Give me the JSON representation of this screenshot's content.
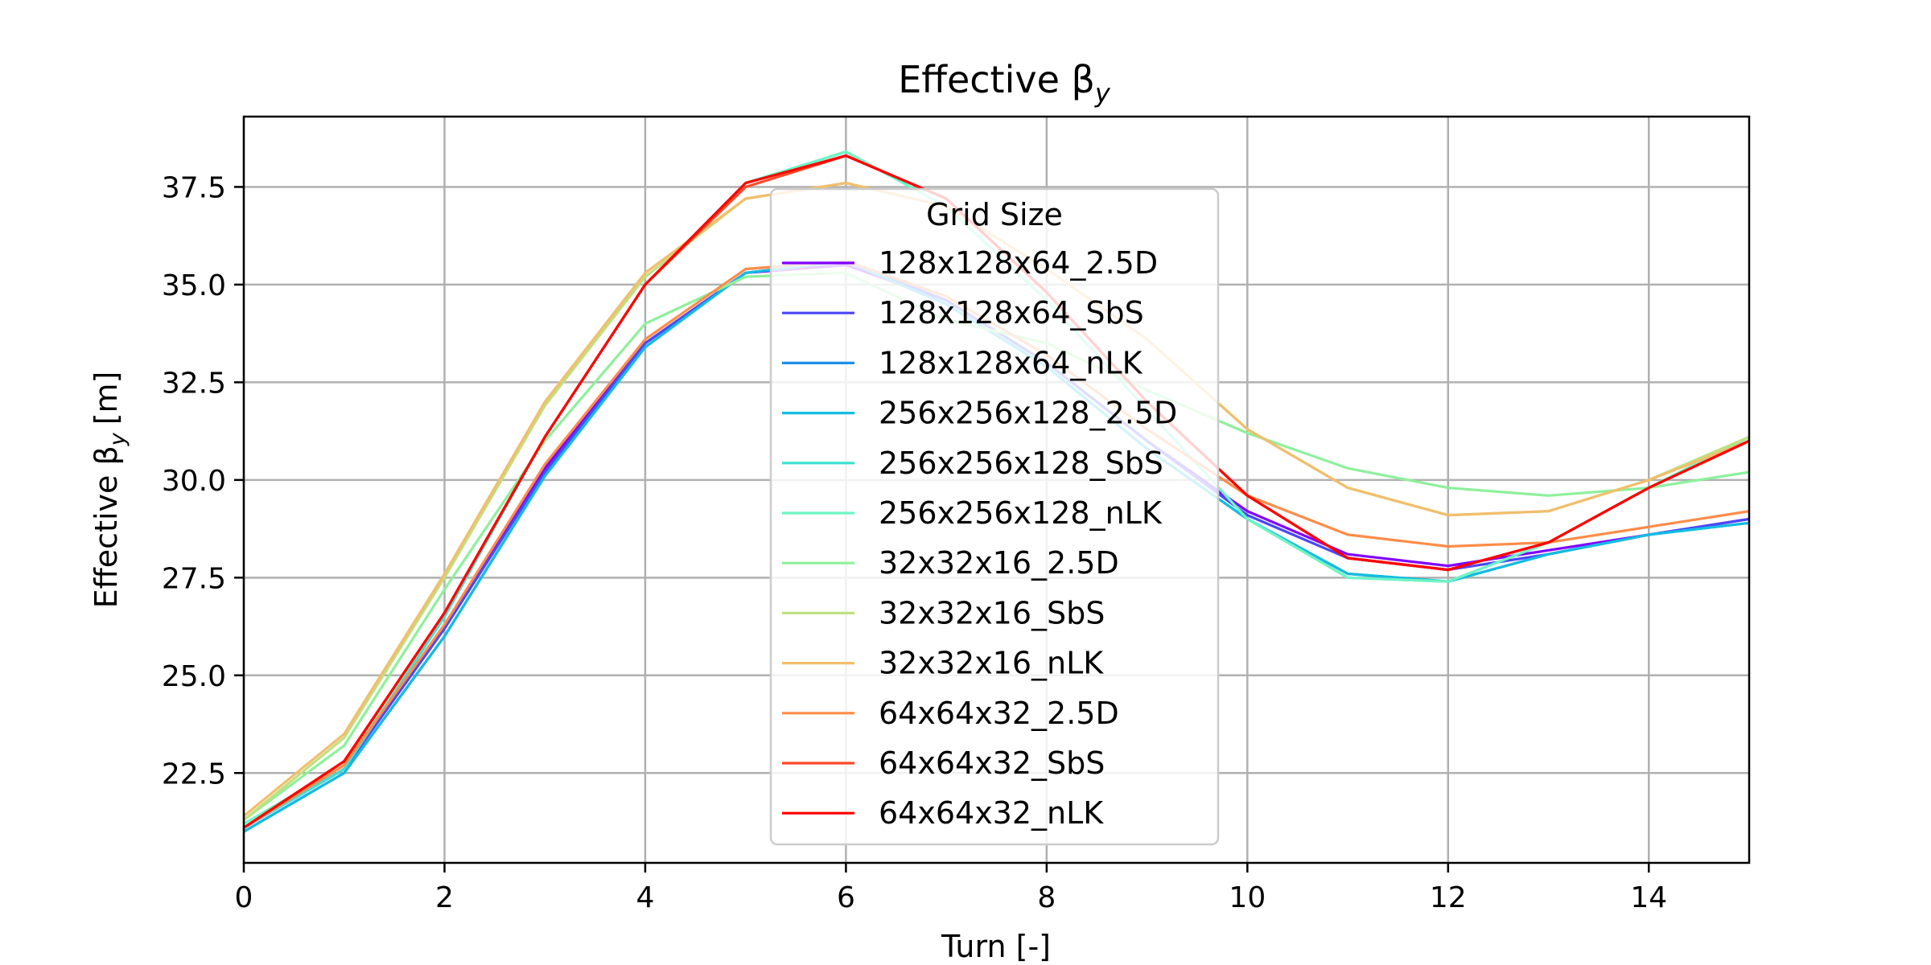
{
  "chart_data": {
    "type": "line",
    "title": "Effective β",
    "title_sub": "y",
    "xlabel": "Turn [-]",
    "ylabel": "Effective β",
    "ylabel_sub": "y",
    "ylabel_unit": "[m]",
    "xlim": [
      0,
      15
    ],
    "ylim": [
      20.2,
      39.3
    ],
    "xticks": [
      0,
      2,
      4,
      6,
      8,
      10,
      12,
      14
    ],
    "yticks": [
      22.5,
      25.0,
      27.5,
      30.0,
      32.5,
      35.0,
      37.5
    ],
    "ytick_labels": [
      "22.5",
      "25.0",
      "27.5",
      "30.0",
      "32.5",
      "35.0",
      "37.5"
    ],
    "grid": true,
    "legend": {
      "title": "Grid Size",
      "placement": "upper-center"
    },
    "x": [
      0,
      1,
      2,
      3,
      4,
      5,
      6,
      7,
      8,
      9,
      10,
      11,
      12,
      13,
      14,
      15
    ],
    "series": [
      {
        "name": "128x128x64_2.5D",
        "color": "#8000ff",
        "values": [
          21.1,
          22.6,
          26.2,
          30.3,
          33.5,
          35.3,
          35.5,
          34.6,
          33.0,
          31.0,
          29.2,
          28.1,
          27.8,
          28.2,
          28.6,
          29.0
        ]
      },
      {
        "name": "128x128x64_SbS",
        "color": "#4a48f8",
        "values": [
          21.1,
          22.6,
          26.2,
          30.2,
          33.5,
          35.3,
          35.6,
          34.6,
          33.0,
          31.0,
          29.1,
          28.0,
          27.7,
          28.1,
          28.6,
          29.0
        ]
      },
      {
        "name": "128x128x64_nLK",
        "color": "#1e8fe8",
        "values": [
          21.0,
          22.5,
          26.0,
          30.1,
          33.4,
          35.3,
          35.6,
          34.5,
          32.9,
          30.8,
          29.0,
          27.6,
          27.4,
          28.1,
          28.6,
          28.9
        ]
      },
      {
        "name": "256x256x128_2.5D",
        "color": "#14bce0",
        "values": [
          21.0,
          22.5,
          26.0,
          30.1,
          33.4,
          35.3,
          35.6,
          34.5,
          32.9,
          30.8,
          29.0,
          27.6,
          27.4,
          28.1,
          28.6,
          28.9
        ]
      },
      {
        "name": "256x256x128_SbS",
        "color": "#3ce0d0",
        "values": [
          21.1,
          22.6,
          26.5,
          31.1,
          35.0,
          37.6,
          38.4,
          37.0,
          34.6,
          31.8,
          29.0,
          27.5,
          27.4,
          28.4,
          29.8,
          31.1
        ]
      },
      {
        "name": "256x256x128_nLK",
        "color": "#6ef5c4",
        "values": [
          21.2,
          22.7,
          26.6,
          31.1,
          35.0,
          37.6,
          38.4,
          37.0,
          34.6,
          31.8,
          29.0,
          27.5,
          27.4,
          28.4,
          29.8,
          31.1
        ]
      },
      {
        "name": "32x32x16_2.5D",
        "color": "#8ef09c",
        "values": [
          21.3,
          23.2,
          27.2,
          31.0,
          34.0,
          35.2,
          35.3,
          34.1,
          33.5,
          32.3,
          31.2,
          30.3,
          29.8,
          29.6,
          29.8,
          30.2
        ]
      },
      {
        "name": "32x32x16_SbS",
        "color": "#c0e080",
        "values": [
          21.3,
          23.4,
          27.5,
          31.9,
          35.2,
          37.2,
          37.6,
          37.0,
          35.4,
          33.6,
          31.3,
          29.8,
          29.1,
          29.2,
          30.0,
          31.1
        ]
      },
      {
        "name": "32x32x16_nLK",
        "color": "#f2be6c",
        "values": [
          21.4,
          23.5,
          27.6,
          32.0,
          35.3,
          37.2,
          37.6,
          37.0,
          35.4,
          33.6,
          31.3,
          29.8,
          29.1,
          29.2,
          30.0,
          31.0
        ]
      },
      {
        "name": "64x64x32_2.5D",
        "color": "#ff8c48",
        "values": [
          21.1,
          22.7,
          26.3,
          30.4,
          33.6,
          35.4,
          35.6,
          34.7,
          33.2,
          31.3,
          29.6,
          28.6,
          28.3,
          28.4,
          28.8,
          29.2
        ]
      },
      {
        "name": "64x64x32_SbS",
        "color": "#ff4a28",
        "values": [
          21.1,
          22.8,
          26.6,
          31.1,
          35.0,
          37.5,
          38.3,
          37.2,
          34.8,
          32.0,
          29.6,
          28.0,
          27.7,
          28.4,
          29.8,
          31.0
        ]
      },
      {
        "name": "64x64x32_nLK",
        "color": "#ff0000",
        "values": [
          21.1,
          22.8,
          26.6,
          31.1,
          35.0,
          37.6,
          38.3,
          37.2,
          34.8,
          32.0,
          29.6,
          28.0,
          27.7,
          28.4,
          29.8,
          31.0
        ]
      }
    ]
  }
}
